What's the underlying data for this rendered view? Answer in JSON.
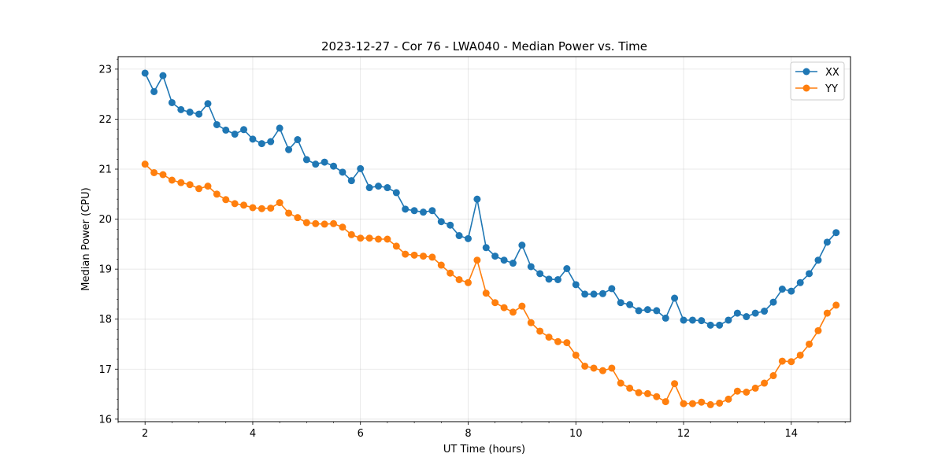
{
  "chart_data": {
    "type": "line",
    "title": "2023-12-27 - Cor 76 - LWA040 - Median Power vs. Time",
    "xlabel": "UT Time (hours)",
    "ylabel": "Median Power (CPU)",
    "xlim": [
      1.5,
      15.1
    ],
    "ylim": [
      15.95,
      23.25
    ],
    "xticks": [
      2,
      4,
      6,
      8,
      10,
      12,
      14
    ],
    "yticks": [
      16,
      17,
      18,
      19,
      20,
      21,
      22,
      23
    ],
    "grid": true,
    "legend_position": "top-right",
    "series": [
      {
        "name": "XX",
        "color": "#1f77b4",
        "x": [
          2.0,
          2.167,
          2.333,
          2.5,
          2.667,
          2.833,
          3.0,
          3.167,
          3.333,
          3.5,
          3.667,
          3.833,
          4.0,
          4.167,
          4.333,
          4.5,
          4.667,
          4.833,
          5.0,
          5.167,
          5.333,
          5.5,
          5.667,
          5.833,
          6.0,
          6.167,
          6.333,
          6.5,
          6.667,
          6.833,
          7.0,
          7.167,
          7.333,
          7.5,
          7.667,
          7.833,
          8.0,
          8.167,
          8.333,
          8.5,
          8.667,
          8.833,
          9.0,
          9.167,
          9.333,
          9.5,
          9.667,
          9.833,
          10.0,
          10.167,
          10.333,
          10.5,
          10.667,
          10.833,
          11.0,
          11.167,
          11.333,
          11.5,
          11.667,
          11.833,
          12.0,
          12.167,
          12.333,
          12.5,
          12.667,
          12.833,
          13.0,
          13.167,
          13.333,
          13.5,
          13.667,
          13.833,
          14.0,
          14.167,
          14.333,
          14.5,
          14.667,
          14.833
        ],
        "values": [
          22.92,
          22.55,
          22.87,
          22.33,
          22.19,
          22.14,
          22.1,
          22.31,
          21.89,
          21.78,
          21.7,
          21.79,
          21.6,
          21.51,
          21.55,
          21.82,
          21.39,
          21.59,
          21.19,
          21.1,
          21.14,
          21.06,
          20.94,
          20.77,
          21.01,
          20.63,
          20.66,
          20.63,
          20.53,
          20.2,
          20.17,
          20.14,
          20.17,
          19.95,
          19.88,
          19.67,
          19.61,
          20.4,
          19.43,
          19.26,
          19.18,
          19.12,
          19.48,
          19.05,
          18.91,
          18.8,
          18.79,
          19.01,
          18.69,
          18.5,
          18.5,
          18.51,
          18.61,
          18.33,
          18.29,
          18.17,
          18.19,
          18.17,
          18.02,
          18.42,
          17.98,
          17.98,
          17.97,
          17.88,
          17.88,
          17.98,
          18.12,
          18.05,
          18.12,
          18.16,
          18.34,
          18.6,
          18.56,
          18.73,
          18.91,
          19.18,
          19.54,
          19.73
        ]
      },
      {
        "name": "YY",
        "color": "#ff7f0e",
        "x": [
          2.0,
          2.167,
          2.333,
          2.5,
          2.667,
          2.833,
          3.0,
          3.167,
          3.333,
          3.5,
          3.667,
          3.833,
          4.0,
          4.167,
          4.333,
          4.5,
          4.667,
          4.833,
          5.0,
          5.167,
          5.333,
          5.5,
          5.667,
          5.833,
          6.0,
          6.167,
          6.333,
          6.5,
          6.667,
          6.833,
          7.0,
          7.167,
          7.333,
          7.5,
          7.667,
          7.833,
          8.0,
          8.167,
          8.333,
          8.5,
          8.667,
          8.833,
          9.0,
          9.167,
          9.333,
          9.5,
          9.667,
          9.833,
          10.0,
          10.167,
          10.333,
          10.5,
          10.667,
          10.833,
          11.0,
          11.167,
          11.333,
          11.5,
          11.667,
          11.833,
          12.0,
          12.167,
          12.333,
          12.5,
          12.667,
          12.833,
          13.0,
          13.167,
          13.333,
          13.5,
          13.667,
          13.833,
          14.0,
          14.167,
          14.333,
          14.5,
          14.667,
          14.833
        ],
        "values": [
          21.1,
          20.93,
          20.89,
          20.78,
          20.73,
          20.69,
          20.61,
          20.66,
          20.5,
          20.39,
          20.31,
          20.28,
          20.23,
          20.21,
          20.22,
          20.33,
          20.12,
          20.03,
          19.93,
          19.91,
          19.9,
          19.91,
          19.84,
          19.69,
          19.62,
          19.62,
          19.6,
          19.6,
          19.46,
          19.3,
          19.28,
          19.26,
          19.24,
          19.08,
          18.92,
          18.79,
          18.73,
          19.18,
          18.52,
          18.33,
          18.23,
          18.14,
          18.26,
          17.93,
          17.76,
          17.64,
          17.55,
          17.53,
          17.28,
          17.06,
          17.02,
          16.97,
          17.02,
          16.72,
          16.62,
          16.53,
          16.51,
          16.45,
          16.35,
          16.71,
          16.31,
          16.31,
          16.34,
          16.29,
          16.32,
          16.4,
          16.56,
          16.54,
          16.62,
          16.72,
          16.87,
          17.16,
          17.15,
          17.28,
          17.5,
          17.77,
          18.12,
          18.28
        ]
      }
    ]
  }
}
